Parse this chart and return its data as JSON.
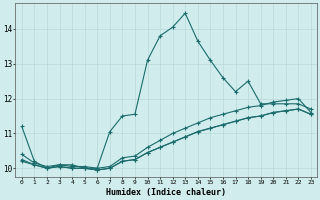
{
  "xlabel": "Humidex (Indice chaleur)",
  "background_color": "#d0ecec",
  "grid_color": "#b8d8d8",
  "line_color": "#1a6b6b",
  "xlim": [
    -0.5,
    23.5
  ],
  "ylim": [
    9.75,
    14.75
  ],
  "ytick_values": [
    10,
    11,
    12,
    13,
    14
  ],
  "curve1_x": [
    0,
    1,
    2,
    3,
    4,
    5,
    6,
    7,
    8,
    9,
    10,
    11,
    12,
    13,
    14,
    15,
    16,
    17,
    18,
    19,
    20,
    21,
    22,
    23
  ],
  "curve1_y": [
    11.2,
    10.2,
    10.0,
    10.1,
    10.1,
    10.0,
    10.0,
    11.05,
    11.5,
    11.55,
    13.1,
    13.8,
    14.05,
    14.45,
    13.65,
    13.1,
    12.6,
    12.2,
    12.5,
    11.85,
    11.85,
    11.85,
    11.85,
    11.7
  ],
  "curve2_x": [
    0,
    1,
    2,
    3,
    4,
    5,
    6,
    7,
    8,
    9,
    10,
    11,
    12,
    13,
    14,
    15,
    16,
    17,
    18,
    19,
    20,
    21,
    22,
    23
  ],
  "curve2_y": [
    10.4,
    10.15,
    10.05,
    10.1,
    10.05,
    10.05,
    10.0,
    10.05,
    10.3,
    10.35,
    10.6,
    10.8,
    11.0,
    11.15,
    11.3,
    11.45,
    11.55,
    11.65,
    11.75,
    11.8,
    11.9,
    11.95,
    12.0,
    11.6
  ],
  "curve3_x": [
    0,
    1,
    2,
    3,
    4,
    5,
    6,
    7,
    8,
    9,
    10,
    11,
    12,
    13,
    14,
    15,
    16,
    17,
    18,
    19,
    20,
    21,
    22,
    23
  ],
  "curve3_y": [
    10.25,
    10.1,
    10.0,
    10.05,
    10.0,
    10.0,
    9.95,
    10.0,
    10.2,
    10.25,
    10.45,
    10.6,
    10.75,
    10.9,
    11.05,
    11.15,
    11.25,
    11.35,
    11.45,
    11.5,
    11.6,
    11.65,
    11.7,
    11.55
  ],
  "curve4_x": [
    0,
    2,
    3,
    4,
    5,
    6,
    7,
    8,
    9,
    10,
    11,
    12,
    13,
    14,
    15,
    16,
    17,
    18,
    19,
    20,
    21,
    22,
    23
  ],
  "curve4_y": [
    10.2,
    10.0,
    10.05,
    10.0,
    10.0,
    9.95,
    10.0,
    10.2,
    10.25,
    10.45,
    10.6,
    10.75,
    10.9,
    11.05,
    11.15,
    11.25,
    11.35,
    11.45,
    11.5,
    11.6,
    11.65,
    11.7,
    11.55
  ]
}
